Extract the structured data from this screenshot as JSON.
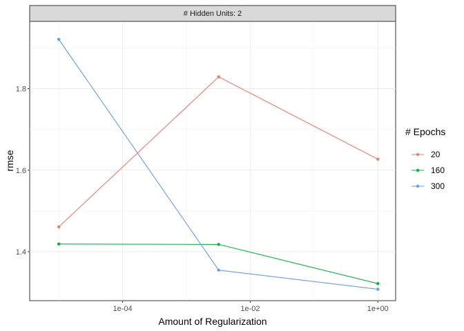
{
  "chart_data": {
    "type": "line",
    "facet_label": "# Hidden Units: 2",
    "xlabel": "Amount of Regularization",
    "ylabel": "rmse",
    "x_scale": "log10",
    "xlim": [
      3.5e-06,
      1.9
    ],
    "ylim": [
      1.28,
      1.965
    ],
    "x_ticks": [
      0.0001,
      0.01,
      1
    ],
    "x_tick_labels": [
      "1e-04",
      "1e-02",
      "1e+00"
    ],
    "y_ticks": [
      1.4,
      1.6,
      1.8
    ],
    "y_tick_labels": [
      "1.4",
      "1.6",
      "1.8"
    ],
    "grid": true,
    "legend": {
      "title": "# Epochs",
      "position": "right"
    },
    "x": [
      1e-05,
      0.0032,
      1
    ],
    "series": [
      {
        "name": "20",
        "color": "#F8766D",
        "values": [
          1.461,
          1.829,
          1.627
        ]
      },
      {
        "name": "160",
        "color": "#00BA38",
        "values": [
          1.419,
          1.418,
          1.322
        ]
      },
      {
        "name": "300",
        "color": "#619CFF",
        "values": [
          1.921,
          1.355,
          1.308
        ]
      }
    ]
  }
}
